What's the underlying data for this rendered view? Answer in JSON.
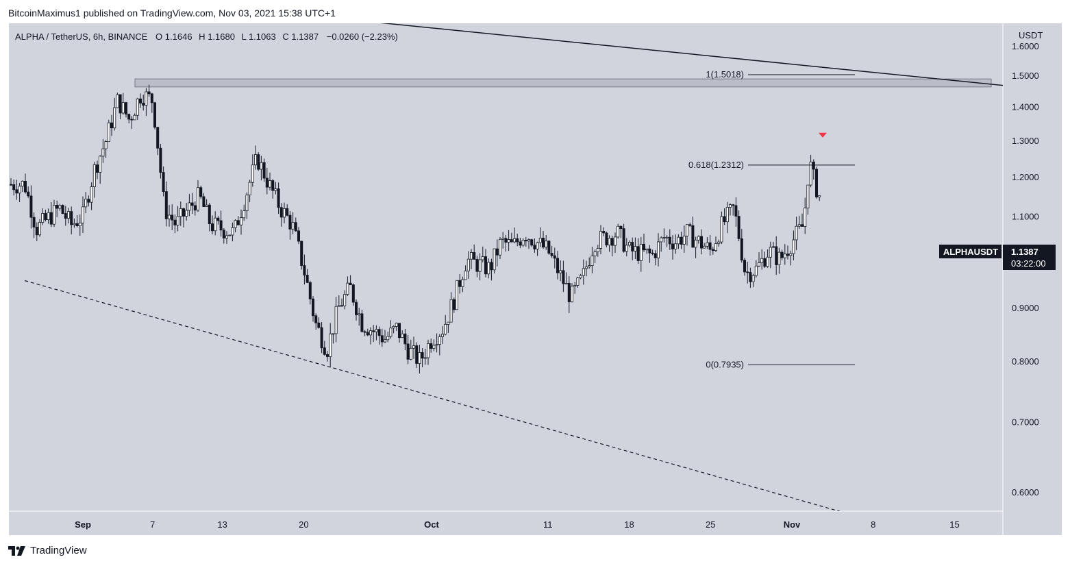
{
  "header": {
    "publisher_line": "BitcoinMaximus1 published on TradingView.com, Nov 03, 2021 15:38 UTC+1"
  },
  "legend": {
    "symbol": "ALPHA / TetherUS, 6h, BINANCE",
    "o_label": "O",
    "o_value": "1.1646",
    "h_label": "H",
    "h_value": "1.1680",
    "l_label": "L",
    "l_value": "1.1063",
    "c_label": "C",
    "c_value": "1.1387",
    "change": "−0.0260 (−2.23%)"
  },
  "price_badge": {
    "ticker": "ALPHAUSDT",
    "price": "1.1387",
    "countdown": "03:22:00"
  },
  "footer": {
    "brand": "TradingView"
  },
  "colors": {
    "plot_bg": "#d1d4dc",
    "candle": "#131722",
    "resistance_zone": "#a3a6af",
    "arrow": "#f23645"
  },
  "chart_data": {
    "type": "candlestick",
    "symbol": "ALPHAUSDT",
    "timeframe": "6h",
    "exchange": "BINANCE",
    "currency": "USDT",
    "y_scale": "log",
    "ylim": [
      0.55,
      1.62
    ],
    "y_ticks": [
      "1.6000",
      "1.5000",
      "1.4000",
      "1.3000",
      "1.2000",
      "1.1000",
      "1.0000",
      "0.9000",
      "0.8000",
      "0.7000",
      "0.6000"
    ],
    "x_ticks": [
      "Sep",
      "7",
      "13",
      "20",
      "Oct",
      "11",
      "18",
      "25",
      "Nov",
      "8",
      "15"
    ],
    "last_close": 1.1387,
    "fib_levels": [
      {
        "ratio": "1",
        "price": 1.5018,
        "label": "1(1.5018)"
      },
      {
        "ratio": "0.618",
        "price": 1.2312,
        "label": "0.618(1.2312)"
      },
      {
        "ratio": "0",
        "price": 0.7935,
        "label": "0(0.7935)"
      }
    ],
    "resistance_zone": {
      "low": 1.462,
      "high": 1.488
    },
    "descending_resistance_line": {
      "from": {
        "date": "2021-09-16",
        "price": 1.73
      },
      "to": {
        "date": "2021-11-21",
        "price": 1.46
      }
    },
    "descending_support_line": {
      "from": {
        "date": "2021-08-27",
        "price": 0.955
      },
      "to": {
        "date": "2021-11-10",
        "price": 0.555
      }
    },
    "marker": {
      "type": "down-arrow",
      "date": "2021-11-02",
      "price": 1.31
    },
    "price_path": [
      {
        "date": "2021-08-27",
        "price": 1.18
      },
      {
        "date": "2021-08-28",
        "price": 1.07
      },
      {
        "date": "2021-08-30",
        "price": 1.12
      },
      {
        "date": "2021-08-31",
        "price": 1.08
      },
      {
        "date": "2021-09-01",
        "price": 1.1
      },
      {
        "date": "2021-09-02",
        "price": 1.22
      },
      {
        "date": "2021-09-03",
        "price": 1.3
      },
      {
        "date": "2021-09-04",
        "price": 1.42
      },
      {
        "date": "2021-09-05",
        "price": 1.36
      },
      {
        "date": "2021-09-06",
        "price": 1.44
      },
      {
        "date": "2021-09-07",
        "price": 1.42
      },
      {
        "date": "2021-09-08",
        "price": 1.12
      },
      {
        "date": "2021-09-09",
        "price": 1.08
      },
      {
        "date": "2021-09-11",
        "price": 1.15
      },
      {
        "date": "2021-09-12",
        "price": 1.08
      },
      {
        "date": "2021-09-14",
        "price": 1.06
      },
      {
        "date": "2021-09-15",
        "price": 1.15
      },
      {
        "date": "2021-09-16",
        "price": 1.25
      },
      {
        "date": "2021-09-17",
        "price": 1.18
      },
      {
        "date": "2021-09-18",
        "price": 1.12
      },
      {
        "date": "2021-09-19",
        "price": 1.08
      },
      {
        "date": "2021-09-20",
        "price": 0.98
      },
      {
        "date": "2021-09-21",
        "price": 0.87
      },
      {
        "date": "2021-09-22",
        "price": 0.82
      },
      {
        "date": "2021-09-23",
        "price": 0.9
      },
      {
        "date": "2021-09-24",
        "price": 0.94
      },
      {
        "date": "2021-09-25",
        "price": 0.87
      },
      {
        "date": "2021-09-27",
        "price": 0.84
      },
      {
        "date": "2021-09-28",
        "price": 0.86
      },
      {
        "date": "2021-09-29",
        "price": 0.82
      },
      {
        "date": "2021-09-30",
        "price": 0.8
      },
      {
        "date": "2021-10-01",
        "price": 0.84
      },
      {
        "date": "2021-10-02",
        "price": 0.86
      },
      {
        "date": "2021-10-03",
        "price": 0.92
      },
      {
        "date": "2021-10-04",
        "price": 1.0
      },
      {
        "date": "2021-10-06",
        "price": 0.98
      },
      {
        "date": "2021-10-07",
        "price": 1.04
      },
      {
        "date": "2021-10-08",
        "price": 1.03
      },
      {
        "date": "2021-10-09",
        "price": 1.06
      },
      {
        "date": "2021-10-10",
        "price": 1.04
      },
      {
        "date": "2021-10-11",
        "price": 1.02
      },
      {
        "date": "2021-10-12",
        "price": 0.97
      },
      {
        "date": "2021-10-13",
        "price": 0.92
      },
      {
        "date": "2021-10-14",
        "price": 0.96
      },
      {
        "date": "2021-10-15",
        "price": 1.04
      },
      {
        "date": "2021-10-17",
        "price": 1.06
      },
      {
        "date": "2021-10-18",
        "price": 1.02
      },
      {
        "date": "2021-10-20",
        "price": 1.01
      },
      {
        "date": "2021-10-21",
        "price": 1.05
      },
      {
        "date": "2021-10-22",
        "price": 1.04
      },
      {
        "date": "2021-10-23",
        "price": 1.06
      },
      {
        "date": "2021-10-25",
        "price": 1.02
      },
      {
        "date": "2021-10-26",
        "price": 1.08
      },
      {
        "date": "2021-10-27",
        "price": 1.12
      },
      {
        "date": "2021-10-28",
        "price": 0.97
      },
      {
        "date": "2021-10-29",
        "price": 0.98
      },
      {
        "date": "2021-10-30",
        "price": 1.02
      },
      {
        "date": "2021-10-31",
        "price": 1.0
      },
      {
        "date": "2021-11-01",
        "price": 1.04
      },
      {
        "date": "2021-11-02",
        "price": 1.08
      },
      {
        "date": "2021-11-02T12:00",
        "price": 1.24
      },
      {
        "date": "2021-11-03",
        "price": 1.18
      },
      {
        "date": "2021-11-03T12:00",
        "price": 1.14
      }
    ]
  }
}
